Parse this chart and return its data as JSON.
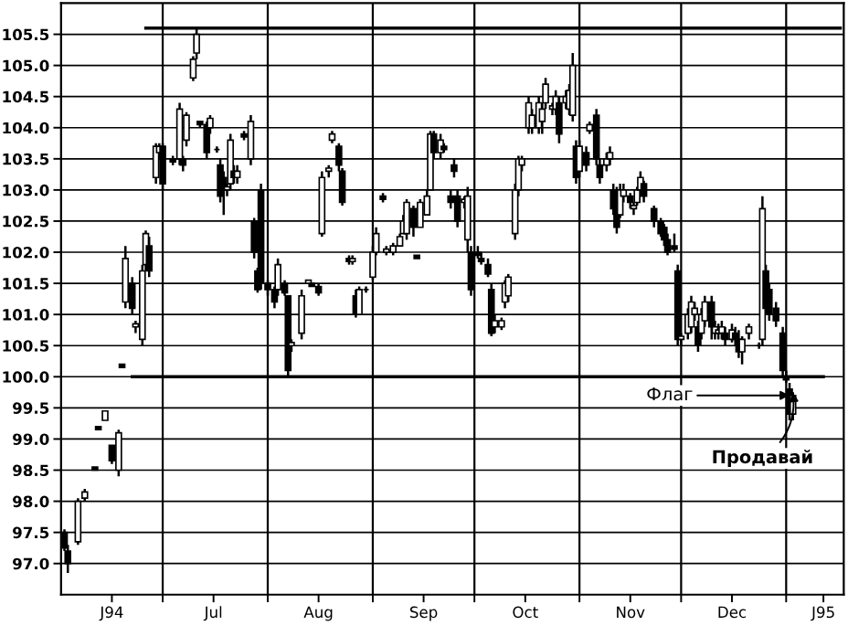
{
  "chart_data": {
    "type": "candlestick",
    "x": [
      "1994-06-02",
      "1994-06-03",
      "1994-06-06",
      "1994-06-08",
      "1994-06-11",
      "1994-06-12",
      "1994-06-14",
      "1994-06-16",
      "1994-06-18",
      "1994-06-19",
      "1994-06-20",
      "1994-06-22",
      "1994-06-23",
      "1994-06-25",
      "1994-06-26",
      "1994-06-27",
      "1994-06-29",
      "1994-06-30",
      "1994-07-01",
      "1994-07-04",
      "1994-07-06",
      "1994-07-07",
      "1994-07-08",
      "1994-07-10",
      "1994-07-11",
      "1994-07-12",
      "1994-07-14",
      "1994-07-15",
      "1994-07-17",
      "1994-07-18",
      "1994-07-19",
      "1994-07-20",
      "1994-07-21",
      "1994-07-22",
      "1994-07-23",
      "1994-07-25",
      "1994-07-27",
      "1994-07-28",
      "1994-07-29",
      "1994-07-30",
      "1994-08-01",
      "1994-08-03",
      "1994-08-04",
      "1994-08-06",
      "1994-08-07",
      "1994-08-08",
      "1994-08-11",
      "1994-08-13",
      "1994-08-14",
      "1994-08-16",
      "1994-08-17",
      "1994-08-19",
      "1994-08-20",
      "1994-08-22",
      "1994-08-23",
      "1994-08-25",
      "1994-08-26",
      "1994-08-27",
      "1994-08-28",
      "1994-08-30",
      "1994-09-01",
      "1994-09-02",
      "1994-09-04",
      "1994-09-05",
      "1994-09-07",
      "1994-09-09",
      "1994-09-10",
      "1994-09-11",
      "1994-09-13",
      "1994-09-14",
      "1994-09-15",
      "1994-09-17",
      "1994-09-18",
      "1994-09-19",
      "1994-09-21",
      "1994-09-22",
      "1994-09-24",
      "1994-09-25",
      "1994-09-26",
      "1994-09-28",
      "1994-09-29",
      "1994-09-30",
      "1994-10-02",
      "1994-10-03",
      "1994-10-05",
      "1994-10-06",
      "1994-10-07",
      "1994-10-09",
      "1994-10-10",
      "1994-10-11",
      "1994-10-13",
      "1994-10-14",
      "1994-10-15",
      "1994-10-17",
      "1994-10-18",
      "1994-10-20",
      "1994-10-21",
      "1994-10-22",
      "1994-10-24",
      "1994-10-25",
      "1994-10-26",
      "1994-10-28",
      "1994-10-29",
      "1994-10-30",
      "1994-10-31",
      "1994-11-01",
      "1994-11-03",
      "1994-11-04",
      "1994-11-06",
      "1994-11-07",
      "1994-11-09",
      "1994-11-10",
      "1994-11-11",
      "1994-11-12",
      "1994-11-13",
      "1994-11-14",
      "1994-11-16",
      "1994-11-17",
      "1994-11-18",
      "1994-11-19",
      "1994-11-20",
      "1994-11-23",
      "1994-11-25",
      "1994-11-26",
      "1994-11-27",
      "1994-11-29",
      "1994-11-30",
      "1994-12-01",
      "1994-12-03",
      "1994-12-04",
      "1994-12-05",
      "1994-12-06",
      "1994-12-07",
      "1994-12-08",
      "1994-12-10",
      "1994-12-11",
      "1994-12-12",
      "1994-12-13",
      "1994-12-14",
      "1994-12-16",
      "1994-12-17",
      "1994-12-18",
      "1994-12-19",
      "1994-12-21",
      "1994-12-24",
      "1994-12-25",
      "1994-12-26",
      "1994-12-27",
      "1994-12-29",
      "1994-12-31",
      "1995-01-01",
      "1995-01-02",
      "1995-01-03"
    ],
    "ohlc": [
      [
        97.5,
        97.55,
        97.2,
        97.25
      ],
      [
        97.2,
        97.3,
        96.85,
        97.0
      ],
      [
        97.35,
        98.05,
        97.3,
        98.0
      ],
      [
        98.05,
        98.2,
        98.0,
        98.15
      ],
      [
        98.55,
        98.55,
        98.5,
        98.5
      ],
      [
        99.2,
        99.2,
        99.15,
        99.15
      ],
      [
        99.3,
        99.45,
        99.3,
        99.45
      ],
      [
        98.9,
        98.9,
        98.6,
        98.65
      ],
      [
        98.5,
        99.15,
        98.4,
        99.1
      ],
      [
        100.2,
        100.2,
        100.15,
        100.15
      ],
      [
        101.2,
        102.1,
        101.1,
        101.9
      ],
      [
        101.5,
        101.6,
        101.0,
        101.1
      ],
      [
        100.8,
        100.9,
        100.7,
        100.85
      ],
      [
        100.6,
        101.8,
        100.5,
        101.7
      ],
      [
        101.8,
        102.35,
        101.7,
        102.3
      ],
      [
        102.1,
        102.25,
        101.6,
        101.7
      ],
      [
        103.2,
        103.75,
        103.1,
        103.7
      ],
      [
        103.6,
        103.75,
        103.5,
        103.7
      ],
      [
        103.7,
        103.75,
        103.0,
        103.1
      ],
      [
        103.5,
        103.55,
        103.4,
        103.45
      ],
      [
        103.5,
        104.4,
        103.4,
        104.3
      ],
      [
        103.5,
        103.55,
        103.3,
        103.4
      ],
      [
        103.8,
        104.25,
        103.7,
        104.2
      ],
      [
        104.8,
        105.15,
        104.75,
        105.1
      ],
      [
        105.2,
        105.6,
        105.1,
        105.5
      ],
      [
        104.1,
        104.1,
        104.0,
        104.05
      ],
      [
        104.05,
        104.1,
        103.5,
        103.6
      ],
      [
        104.0,
        104.2,
        103.9,
        104.15
      ],
      [
        103.65,
        103.7,
        103.6,
        103.65
      ],
      [
        103.4,
        103.5,
        102.8,
        102.9
      ],
      [
        103.2,
        103.3,
        102.6,
        103.0
      ],
      [
        103.0,
        103.1,
        102.9,
        103.05
      ],
      [
        103.1,
        103.9,
        103.0,
        103.8
      ],
      [
        103.3,
        103.4,
        103.1,
        103.2
      ],
      [
        103.2,
        103.4,
        103.1,
        103.3
      ],
      [
        103.9,
        103.95,
        103.8,
        103.85
      ],
      [
        103.5,
        104.2,
        103.4,
        104.1
      ],
      [
        102.5,
        102.55,
        101.9,
        102.0
      ],
      [
        101.7,
        101.75,
        101.35,
        101.4
      ],
      [
        103.0,
        103.1,
        101.4,
        101.5
      ],
      [
        101.5,
        101.55,
        101.3,
        101.4
      ],
      [
        101.4,
        101.45,
        101.1,
        101.2
      ],
      [
        101.4,
        101.9,
        101.3,
        101.8
      ],
      [
        101.5,
        101.55,
        101.3,
        101.35
      ],
      [
        101.3,
        101.3,
        100.0,
        100.1
      ],
      [
        100.5,
        100.6,
        100.4,
        100.55
      ],
      [
        100.7,
        101.4,
        100.6,
        101.3
      ],
      [
        101.5,
        101.55,
        101.5,
        101.55
      ],
      [
        101.5,
        101.5,
        101.45,
        101.45
      ],
      [
        101.45,
        101.5,
        101.3,
        101.35
      ],
      [
        102.3,
        103.3,
        102.25,
        103.2
      ],
      [
        103.3,
        103.4,
        103.2,
        103.35
      ],
      [
        103.8,
        103.95,
        103.75,
        103.9
      ],
      [
        103.7,
        103.75,
        103.3,
        103.4
      ],
      [
        103.3,
        103.35,
        102.75,
        102.8
      ],
      [
        101.9,
        101.95,
        101.8,
        101.85
      ],
      [
        101.85,
        101.95,
        101.8,
        101.9
      ],
      [
        101.3,
        101.4,
        100.95,
        101.0
      ],
      [
        101.0,
        101.45,
        101.0,
        101.4
      ],
      [
        101.4,
        101.45,
        101.35,
        101.4
      ],
      [
        101.6,
        102.1,
        101.55,
        102.0
      ],
      [
        102.0,
        102.4,
        101.95,
        102.3
      ],
      [
        102.9,
        102.95,
        102.8,
        102.85
      ],
      [
        102.0,
        102.1,
        101.95,
        102.05
      ],
      [
        102.0,
        102.15,
        101.95,
        102.1
      ],
      [
        102.1,
        102.3,
        102.1,
        102.25
      ],
      [
        102.3,
        102.6,
        102.3,
        102.5
      ],
      [
        102.3,
        102.85,
        102.2,
        102.8
      ],
      [
        102.7,
        102.75,
        102.25,
        102.4
      ],
      [
        101.95,
        101.95,
        101.9,
        101.9
      ],
      [
        102.4,
        102.85,
        102.4,
        102.8
      ],
      [
        102.6,
        103.0,
        102.6,
        102.9
      ],
      [
        103.0,
        103.95,
        103.0,
        103.9
      ],
      [
        103.9,
        103.95,
        103.5,
        103.6
      ],
      [
        103.6,
        103.9,
        103.5,
        103.8
      ],
      [
        103.7,
        103.75,
        103.6,
        103.65
      ],
      [
        102.9,
        103.0,
        102.7,
        102.8
      ],
      [
        103.4,
        103.5,
        103.2,
        103.3
      ],
      [
        102.9,
        103.0,
        102.4,
        102.5
      ],
      [
        102.8,
        102.9,
        102.7,
        102.85
      ],
      [
        102.2,
        103.05,
        102.0,
        102.9
      ],
      [
        102.0,
        102.1,
        101.3,
        101.4
      ],
      [
        102.0,
        102.1,
        101.9,
        101.95
      ],
      [
        101.9,
        102.0,
        101.8,
        101.85
      ],
      [
        101.8,
        101.9,
        101.6,
        101.65
      ],
      [
        101.4,
        101.5,
        100.65,
        100.7
      ],
      [
        100.8,
        101.0,
        100.7,
        100.9
      ],
      [
        100.8,
        100.95,
        100.75,
        100.9
      ],
      [
        101.2,
        101.55,
        101.1,
        101.5
      ],
      [
        101.3,
        101.65,
        101.2,
        101.6
      ],
      [
        102.3,
        103.1,
        102.2,
        103.0
      ],
      [
        103.0,
        103.55,
        102.9,
        103.5
      ],
      [
        103.4,
        103.55,
        103.3,
        103.5
      ],
      [
        104.0,
        104.5,
        103.9,
        104.4
      ],
      [
        104.0,
        104.3,
        103.9,
        104.2
      ],
      [
        104.0,
        104.5,
        103.9,
        104.4
      ],
      [
        104.1,
        104.4,
        103.9,
        104.3
      ],
      [
        104.4,
        104.8,
        104.3,
        104.7
      ],
      [
        104.3,
        104.4,
        104.2,
        104.35
      ],
      [
        104.3,
        104.6,
        104.2,
        104.5
      ],
      [
        104.4,
        104.5,
        103.75,
        103.9
      ],
      [
        104.4,
        104.6,
        104.3,
        104.5
      ],
      [
        104.3,
        104.7,
        104.2,
        104.6
      ],
      [
        104.2,
        105.2,
        104.1,
        105.0
      ],
      [
        103.7,
        103.8,
        103.1,
        103.2
      ],
      [
        103.3,
        103.8,
        103.2,
        103.7
      ],
      [
        103.6,
        103.7,
        103.3,
        103.4
      ],
      [
        103.95,
        104.1,
        103.9,
        104.05
      ],
      [
        104.2,
        104.3,
        103.4,
        103.5
      ],
      [
        103.4,
        103.5,
        103.1,
        103.2
      ],
      [
        103.4,
        103.6,
        103.3,
        103.5
      ],
      [
        103.5,
        103.7,
        103.4,
        103.6
      ],
      [
        103.0,
        103.1,
        102.6,
        102.7
      ],
      [
        102.9,
        103.05,
        102.3,
        102.4
      ],
      [
        102.6,
        103.1,
        102.55,
        103.0
      ],
      [
        102.9,
        103.1,
        102.8,
        103.0
      ],
      [
        102.9,
        102.95,
        102.7,
        102.8
      ],
      [
        102.7,
        102.8,
        102.6,
        102.75
      ],
      [
        102.8,
        103.05,
        102.75,
        103.0
      ],
      [
        103.0,
        103.3,
        102.9,
        103.2
      ],
      [
        103.1,
        103.15,
        102.8,
        102.9
      ],
      [
        102.7,
        102.75,
        102.4,
        102.5
      ],
      [
        102.5,
        102.55,
        102.25,
        102.3
      ],
      [
        102.4,
        102.45,
        102.1,
        102.2
      ],
      [
        102.2,
        102.3,
        101.95,
        102.0
      ],
      [
        102.1,
        102.3,
        102.0,
        102.05
      ],
      [
        101.7,
        101.8,
        100.5,
        100.6
      ],
      [
        100.6,
        100.7,
        100.5,
        100.65
      ],
      [
        100.7,
        101.1,
        100.6,
        101.0
      ],
      [
        100.8,
        101.3,
        100.7,
        101.2
      ],
      [
        101.0,
        101.2,
        100.9,
        101.1
      ],
      [
        100.8,
        100.9,
        100.4,
        100.5
      ],
      [
        100.7,
        101.1,
        100.6,
        101.0
      ],
      [
        100.9,
        101.3,
        100.8,
        101.2
      ],
      [
        101.2,
        101.3,
        100.6,
        100.8
      ],
      [
        100.7,
        100.9,
        100.6,
        100.8
      ],
      [
        100.7,
        100.85,
        100.6,
        100.75
      ],
      [
        100.7,
        100.9,
        100.6,
        100.8
      ],
      [
        100.7,
        100.8,
        100.5,
        100.6
      ],
      [
        100.6,
        100.85,
        100.55,
        100.75
      ],
      [
        100.7,
        100.8,
        100.5,
        100.6
      ],
      [
        100.6,
        100.75,
        100.3,
        100.4
      ],
      [
        100.4,
        100.65,
        100.2,
        100.6
      ],
      [
        100.7,
        100.85,
        100.6,
        100.8
      ],
      [
        100.5,
        100.55,
        100.45,
        100.5
      ],
      [
        100.6,
        102.9,
        100.5,
        102.7
      ],
      [
        101.7,
        101.8,
        101.0,
        101.1
      ],
      [
        101.4,
        101.5,
        100.9,
        101.0
      ],
      [
        101.1,
        101.2,
        100.8,
        100.9
      ],
      [
        100.7,
        100.8,
        100.0,
        100.1
      ],
      [
        100.0,
        100.1,
        99.9,
        99.95
      ],
      [
        99.8,
        99.9,
        99.3,
        99.4
      ],
      [
        99.4,
        99.75,
        99.3,
        99.7
      ]
    ],
    "color": "#000000",
    "series": [
      {
        "type": "line",
        "x": [
          "1994-06-26",
          "1995-01-17"
        ],
        "values": [
          105.6,
          105.6
        ],
        "color": "#000000"
      },
      {
        "type": "line",
        "x": [
          "1994-06-22",
          "1995-01-12"
        ],
        "values": [
          100.0,
          100.0
        ],
        "color": "#000000"
      }
    ],
    "ref_lines": [
      {
        "axis": "x",
        "value": "1994-07-01",
        "color": "#000000"
      },
      {
        "axis": "x",
        "value": "1994-08-01",
        "color": "#000000"
      },
      {
        "axis": "x",
        "value": "1994-09-01",
        "color": "#000000"
      },
      {
        "axis": "x",
        "value": "1994-10-01",
        "color": "#000000"
      },
      {
        "axis": "x",
        "value": "1994-11-01",
        "color": "#000000"
      },
      {
        "axis": "x",
        "value": "1994-12-01",
        "color": "#000000"
      },
      {
        "axis": "x",
        "value": "1995-01-01",
        "color": "#000000"
      }
    ],
    "annotations": [
      {
        "text": "Флаг",
        "x": "1995-01-02",
        "y": 99.7
      },
      {
        "text": "Продавай",
        "x": "1995-01-03",
        "y": 99.75
      }
    ],
    "xlim": [
      "1994-06-01",
      "1995-01-18"
    ],
    "xticks": [
      {
        "value": "1994-06-16",
        "label": "J94"
      },
      {
        "value": "1994-07-16",
        "label": "Jul"
      },
      {
        "value": "1994-08-16",
        "label": "Aug"
      },
      {
        "value": "1994-09-16",
        "label": "Sep"
      },
      {
        "value": "1994-10-16",
        "label": "Oct"
      },
      {
        "value": "1994-11-16",
        "label": "Nov"
      },
      {
        "value": "1994-12-16",
        "label": "Dec"
      },
      {
        "value": "1995-01-12",
        "label": "J95"
      },
      {
        "value": "1994-07-01",
        "label": null
      },
      {
        "value": "1994-08-01",
        "label": null
      },
      {
        "value": "1994-09-01",
        "label": null
      },
      {
        "value": "1994-10-01",
        "label": null
      },
      {
        "value": "1994-11-01",
        "label": null
      },
      {
        "value": "1994-12-01",
        "label": null
      },
      {
        "value": "1995-01-01",
        "label": null
      }
    ],
    "ylim": [
      96.5,
      106.0
    ],
    "yticks": [
      {
        "value": 97.0,
        "label": "97.0"
      },
      {
        "value": 97.5,
        "label": "97.5"
      },
      {
        "value": 98.0,
        "label": "98.0"
      },
      {
        "value": 98.5,
        "label": "98.5"
      },
      {
        "value": 99.0,
        "label": "99.0"
      },
      {
        "value": 99.5,
        "label": "99.5"
      },
      {
        "value": 100.0,
        "label": "100.0"
      },
      {
        "value": 100.5,
        "label": "100.5"
      },
      {
        "value": 101.0,
        "label": "101.0"
      },
      {
        "value": 101.5,
        "label": "101.5"
      },
      {
        "value": 102.0,
        "label": "102.0"
      },
      {
        "value": 102.5,
        "label": "102.5"
      },
      {
        "value": 103.0,
        "label": "103.0"
      },
      {
        "value": 103.5,
        "label": "103.5"
      },
      {
        "value": 104.0,
        "label": "104.0"
      },
      {
        "value": 104.5,
        "label": "104.5"
      },
      {
        "value": 105.0,
        "label": "105.0"
      },
      {
        "value": 105.5,
        "label": "105.5"
      }
    ],
    "grid": "y",
    "legend": false
  }
}
